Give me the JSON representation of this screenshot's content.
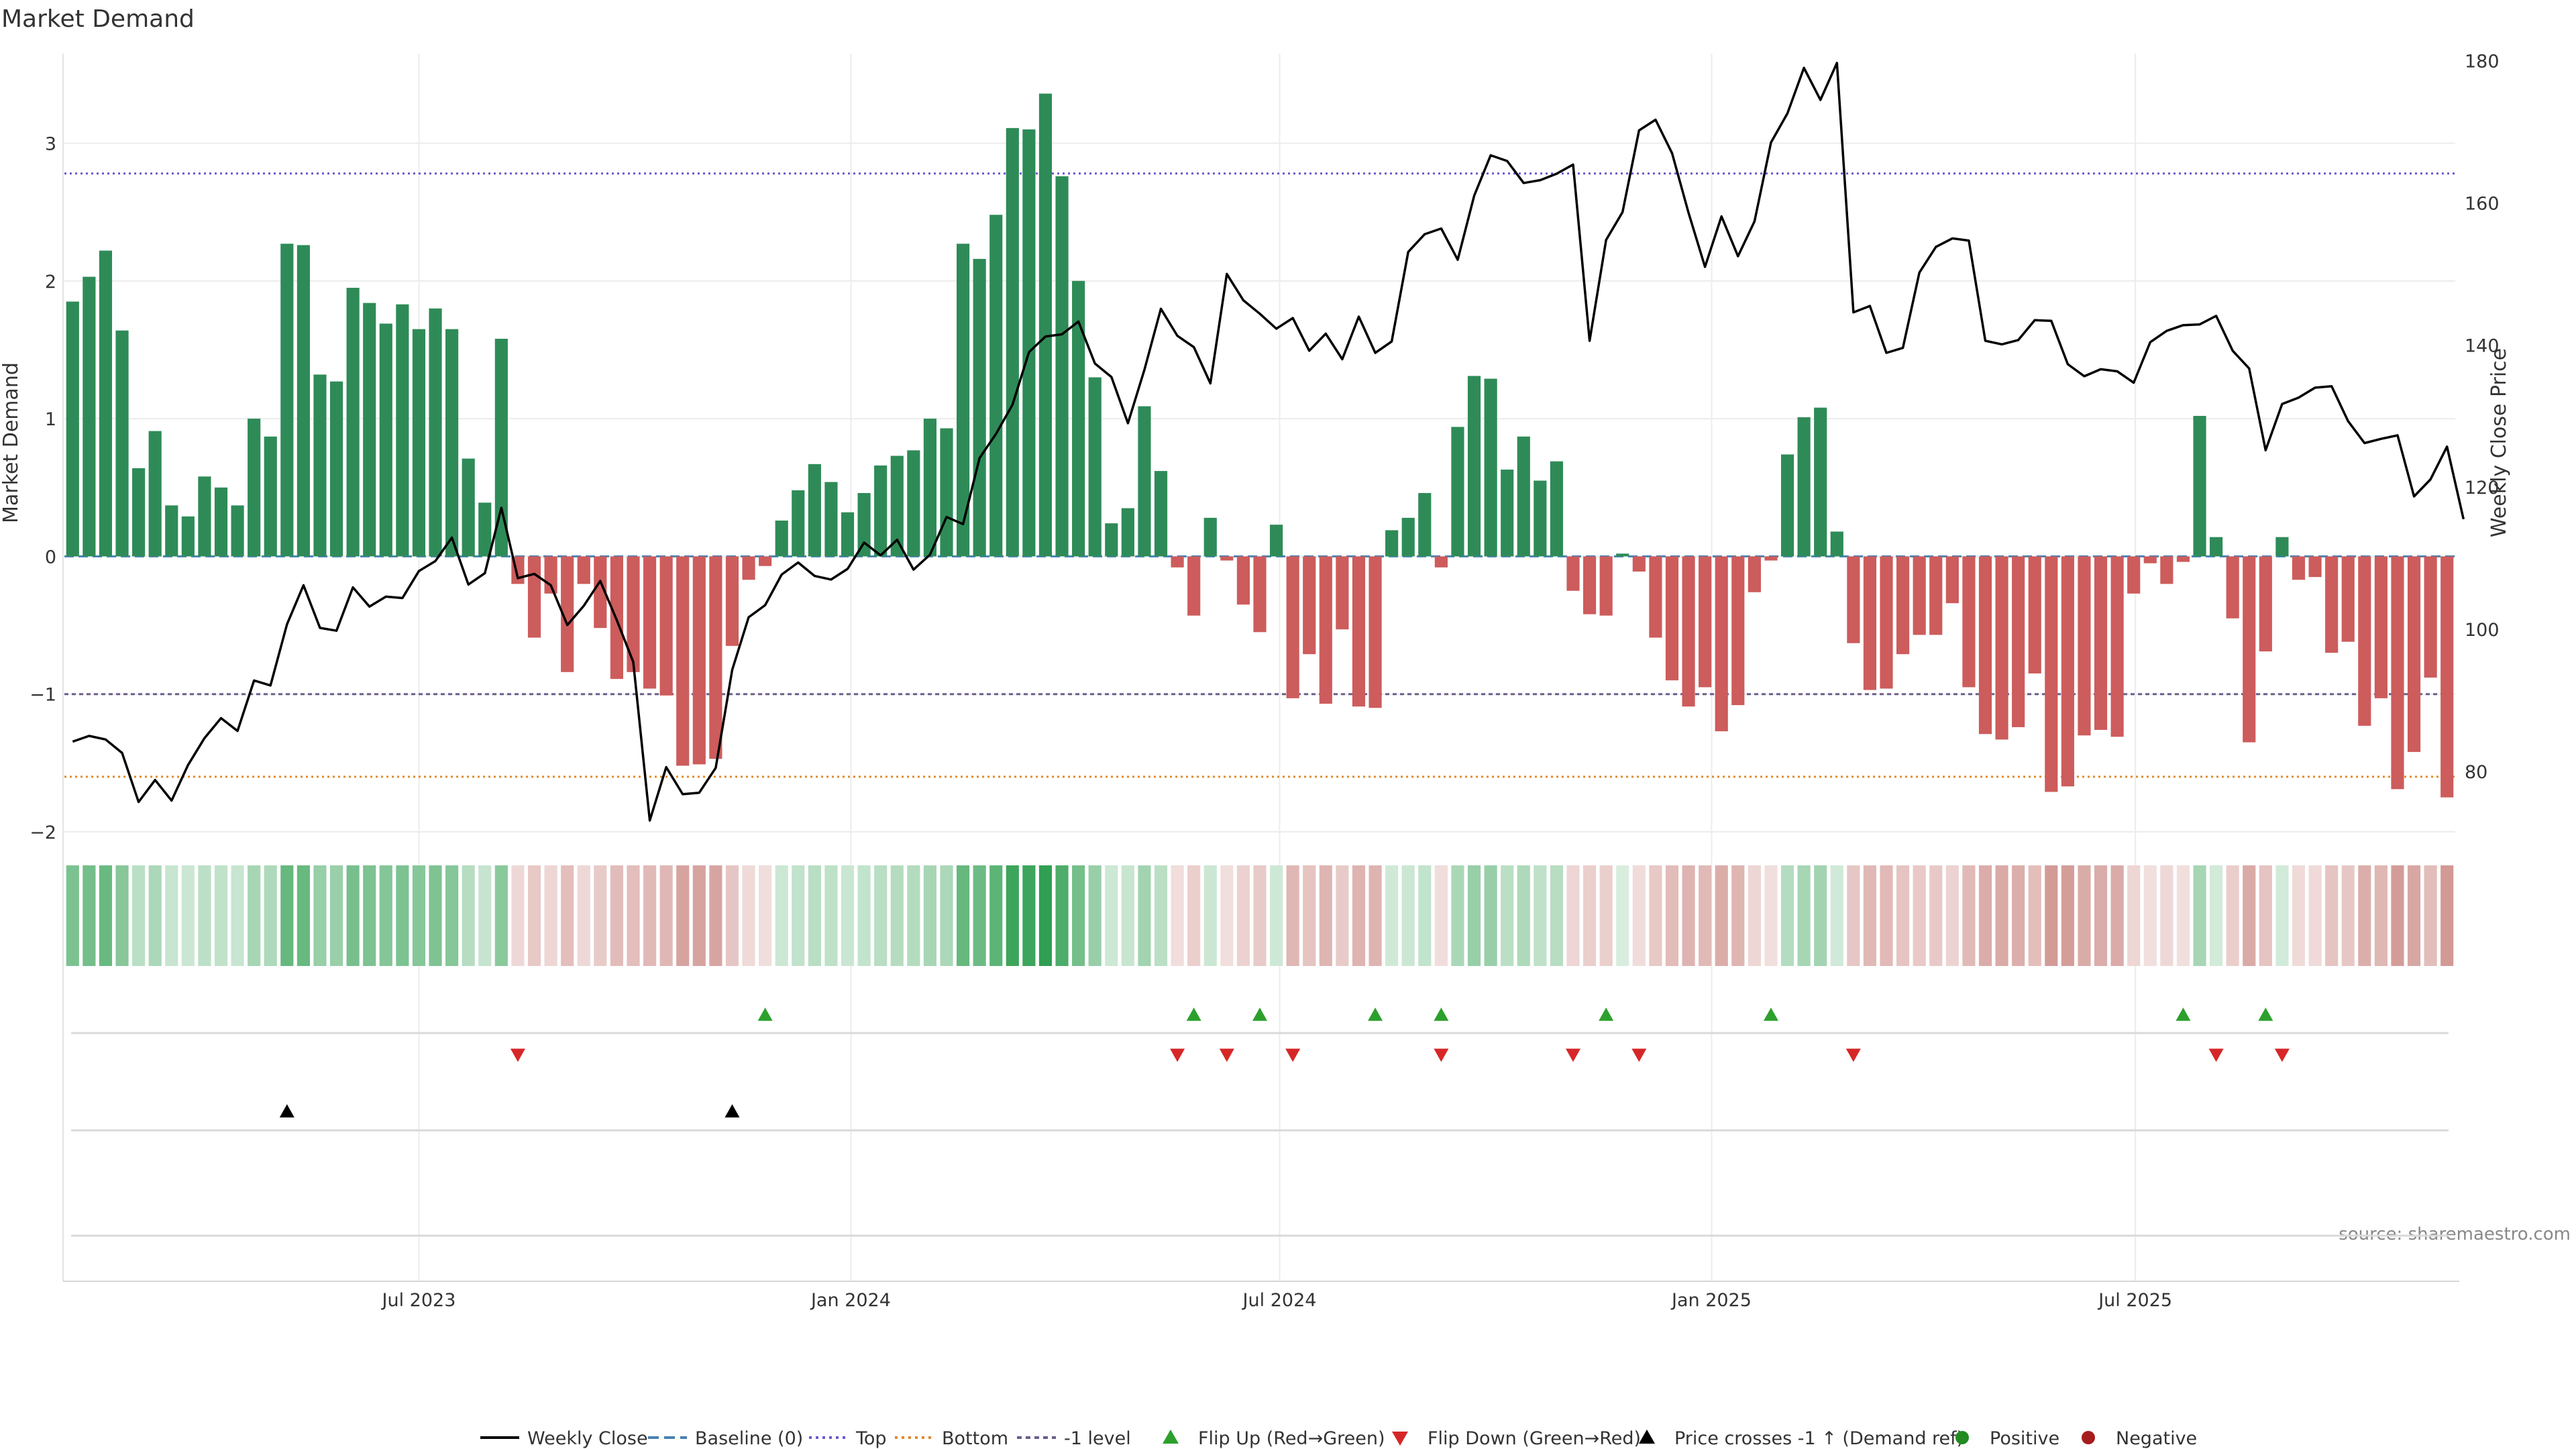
{
  "chart_data": {
    "type": "bar",
    "title": "Market Demand",
    "ylabel": "Market Demand",
    "y2label": "Weekly Close Price",
    "ylim": [
      -2.0,
      3.65
    ],
    "y2lim": [
      71.5,
      181.0
    ],
    "yticks": [
      "−2",
      "−1",
      "0",
      "1",
      "2",
      "3"
    ],
    "y2ticks": [
      "80",
      "100",
      "120",
      "140",
      "160",
      "180"
    ],
    "xticks": [
      "Jul 2023",
      "Jan 2024",
      "Jul 2024",
      "Jan 2025",
      "Jul 2025"
    ],
    "xtick_positions": [
      21.5,
      47.7,
      73.7,
      99.9,
      125.6
    ],
    "reference_lines": {
      "top": 2.78,
      "minus_one": -1.0,
      "bottom": -1.6
    },
    "demand_values": [
      1.85,
      2.03,
      2.22,
      1.64,
      0.64,
      0.91,
      0.37,
      0.29,
      0.58,
      0.5,
      0.37,
      1.0,
      0.87,
      2.27,
      2.26,
      1.32,
      1.27,
      1.95,
      1.84,
      1.69,
      1.83,
      1.65,
      1.8,
      1.65,
      0.71,
      0.39,
      1.58,
      -0.2,
      -0.59,
      -0.27,
      -0.84,
      -0.2,
      -0.52,
      -0.89,
      -0.84,
      -0.96,
      -1.01,
      -1.52,
      -1.51,
      -1.47,
      -0.65,
      -0.17,
      -0.07,
      0.26,
      0.48,
      0.67,
      0.54,
      0.32,
      0.46,
      0.66,
      0.73,
      0.77,
      1.0,
      0.93,
      2.27,
      2.16,
      2.48,
      3.11,
      3.1,
      3.36,
      2.76,
      2.0,
      1.3,
      0.24,
      0.35,
      1.09,
      0.62,
      -0.08,
      -0.43,
      0.28,
      -0.03,
      -0.35,
      -0.55,
      0.23,
      -1.03,
      -0.71,
      -1.07,
      -0.53,
      -1.09,
      -1.1,
      0.19,
      0.28,
      0.46,
      -0.08,
      0.94,
      1.31,
      1.29,
      0.63,
      0.87,
      0.55,
      0.69,
      -0.25,
      -0.42,
      -0.43,
      0.02,
      -0.11,
      -0.59,
      -0.9,
      -1.09,
      -0.95,
      -1.27,
      -1.08,
      -0.26,
      -0.03,
      0.74,
      1.01,
      1.08,
      0.18,
      -0.63,
      -0.97,
      -0.96,
      -0.71,
      -0.57,
      -0.57,
      -0.34,
      -0.95,
      -1.29,
      -1.33,
      -1.24,
      -0.85,
      -1.71,
      -1.67,
      -1.3,
      -1.26,
      -1.31,
      -0.27,
      -0.05,
      -0.2,
      -0.04,
      1.02,
      0.14,
      -0.45,
      -1.35,
      -0.69,
      0.14,
      -0.17,
      -0.15,
      -0.7,
      -0.62,
      -1.23,
      -1.03,
      -1.69,
      -1.42,
      -0.88,
      -1.75
    ],
    "weekly_close": [
      84.2,
      85.0,
      84.5,
      82.6,
      75.7,
      78.8,
      75.9,
      80.9,
      84.7,
      87.5,
      85.7,
      92.8,
      92.1,
      100.7,
      106.2,
      100.2,
      99.8,
      105.9,
      103.2,
      104.6,
      104.4,
      108.2,
      109.6,
      112.9,
      106.3,
      107.9,
      117.1,
      107.2,
      107.8,
      106.2,
      100.6,
      103.3,
      106.8,
      101.3,
      95.4,
      73.1,
      80.6,
      76.8,
      77.0,
      80.5,
      94.3,
      101.7,
      103.4,
      107.7,
      109.4,
      107.5,
      107.0,
      108.5,
      112.2,
      110.4,
      112.6,
      108.4,
      110.5,
      115.8,
      114.8,
      124.1,
      127.5,
      131.6,
      139.0,
      141.2,
      141.5,
      143.3,
      137.4,
      135.5,
      129.0,
      136.5,
      145.1,
      141.3,
      139.7,
      134.6,
      150.0,
      146.3,
      144.4,
      142.3,
      143.8,
      139.2,
      141.6,
      138.0,
      144.0,
      138.9,
      140.5,
      153.1,
      155.6,
      156.4,
      152.0,
      161.0,
      166.7,
      165.9,
      162.8,
      163.2,
      164.1,
      165.4,
      140.6,
      154.8,
      158.7,
      170.2,
      171.7,
      167.0,
      158.6,
      151.0,
      158.1,
      152.5,
      157.4,
      168.5,
      172.6,
      179.0,
      174.5,
      179.7,
      144.6,
      145.5,
      138.9,
      139.6,
      150.2,
      153.8,
      155.0,
      154.7,
      140.6,
      140.1,
      140.7,
      143.5,
      143.4,
      137.3,
      135.6,
      136.6,
      136.3,
      134.7,
      140.4,
      142.0,
      142.8,
      142.9,
      144.1,
      139.2,
      136.7,
      125.2,
      131.7,
      132.6,
      134.0,
      134.2,
      129.3,
      126.2,
      126.8,
      127.3,
      118.7,
      121.1,
      125.7,
      115.5
    ],
    "flip_up_indices": [
      42,
      68,
      72,
      79,
      83,
      93,
      103,
      128,
      133
    ],
    "flip_down_indices": [
      27,
      67,
      70,
      74,
      83,
      91,
      95,
      108,
      130,
      134
    ],
    "price_cross_indices": [
      13,
      40
    ],
    "annotation": "source: sharemaestro.com",
    "legend": {
      "weekly_close": "Weekly Close",
      "baseline": "Baseline (0)",
      "top": "Top",
      "bottom": "Bottom",
      "minus_one": "-1 level",
      "flip_up": "Flip Up (Red→Green)",
      "flip_down": "Flip Down (Green→Red)",
      "price_cross": "Price crosses -1 ↑ (Demand ref)",
      "positive": "Positive",
      "negative": "Negative"
    },
    "colors": {
      "positive": "#2e8b57",
      "negative": "#cd5c5c",
      "price": "#000000",
      "baseline": "#4682b4",
      "top": "#6a5acd",
      "bottom": "#e08a2a",
      "minus_one": "#6b5e8c",
      "flip_up": "#2ca02c",
      "flip_down": "#d62728",
      "cross": "#000000",
      "positive_dot": "#228b22",
      "negative_dot": "#a61c1c",
      "heat_pos": "#2e9e4f",
      "heat_neg": "#b5564f"
    }
  }
}
